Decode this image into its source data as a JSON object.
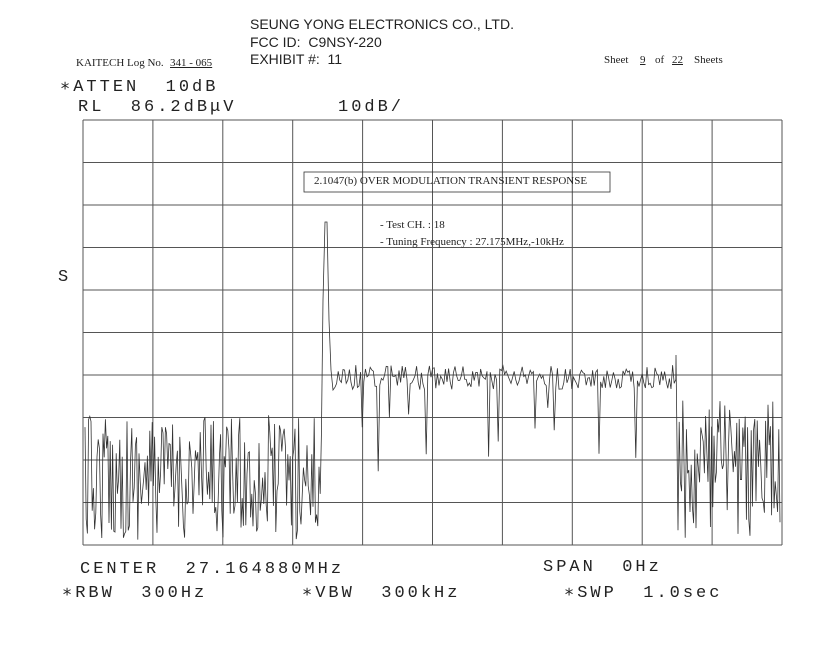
{
  "header": {
    "company": "SEUNG YONG ELECTRONICS CO., LTD.",
    "fcc_id": "FCC ID:  C9NSY-220",
    "exhibit": "EXHIBIT #:  11"
  },
  "log": {
    "label": "KAITECH Log No.",
    "number": "341 - 065"
  },
  "sheet": {
    "label": "Sheet",
    "current": "9",
    "of": "of",
    "total": "22",
    "suffix": "Sheets"
  },
  "analyzer_top": {
    "atten": "∗ATTEN  10dB",
    "ref_level": "RL  86.2dBμV",
    "scale": "10dB/",
    "side_mark": "S"
  },
  "annotation": {
    "title": "2.1047(b) OVER MODULATION TRANSIENT RESPONSE",
    "test_channel": "- Test CH. : 18",
    "tuning_frequency": "- Tuning Frequency : 27.175MHz,-10kHz"
  },
  "analyzer_bottom": {
    "center": "CENTER  27.164880MHz",
    "span": "SPAN  0Hz",
    "rbw": "∗RBW  300Hz",
    "vbw": "∗VBW  300kHz",
    "sweep": "∗SWP  1.0sec"
  }
}
